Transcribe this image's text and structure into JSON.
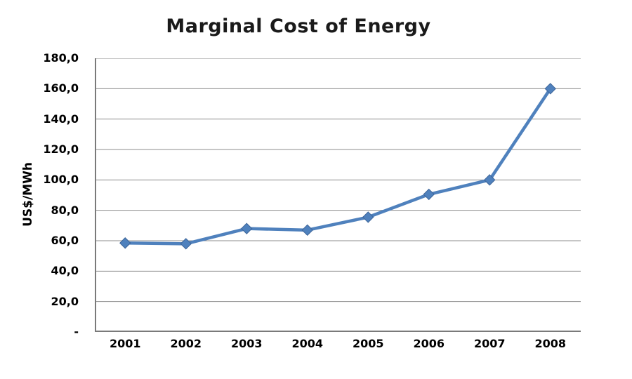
{
  "chart_data": {
    "type": "line",
    "title": "Marginal Cost of Energy",
    "xlabel": "",
    "ylabel": "US$/MWh",
    "categories": [
      "2001",
      "2002",
      "2003",
      "2004",
      "2005",
      "2006",
      "2007",
      "2008"
    ],
    "series": [
      {
        "name": "Marginal Cost",
        "values": [
          58.5,
          58.0,
          68.0,
          67.0,
          75.5,
          90.5,
          100.0,
          160.0
        ]
      }
    ],
    "ylim": [
      0,
      180
    ],
    "ytick_step": 20,
    "yticks": [
      {
        "value": 0,
        "label": "-"
      },
      {
        "value": 20,
        "label": "20,0"
      },
      {
        "value": 40,
        "label": "40,0"
      },
      {
        "value": 60,
        "label": "60,0"
      },
      {
        "value": 80,
        "label": "80,0"
      },
      {
        "value": 100,
        "label": "100,0"
      },
      {
        "value": 120,
        "label": "120,0"
      },
      {
        "value": 140,
        "label": "140,0"
      },
      {
        "value": 160,
        "label": "160,0"
      },
      {
        "value": 180,
        "label": "180,0"
      }
    ],
    "grid": "horizontal",
    "legend": "none",
    "marker": "diamond",
    "colors": {
      "line": "#4F81BD",
      "marker_fill": "#4F81BD",
      "marker_edge": "#3C6498",
      "gridline": "#8c8c8c",
      "axis": "#7a7a7a",
      "text": "#000000",
      "background": "#ffffff"
    }
  }
}
